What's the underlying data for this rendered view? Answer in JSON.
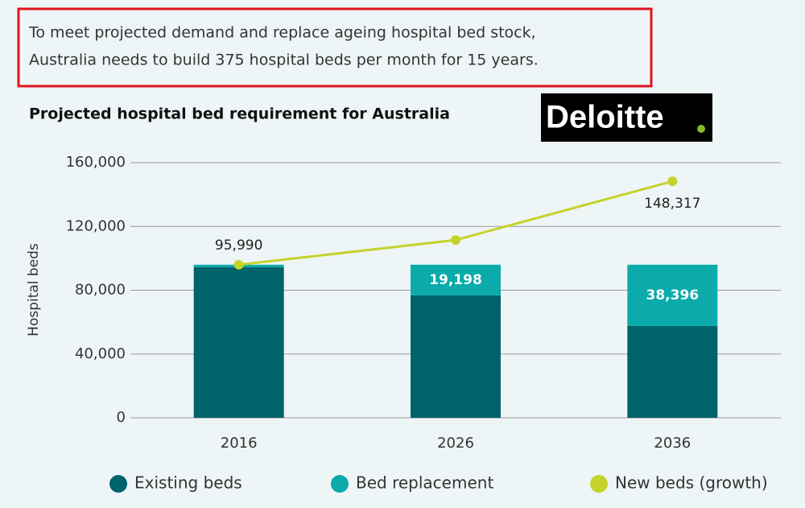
{
  "header": {
    "lines": [
      "To meet projected demand and replace ageing hospital bed stock,",
      "Australia needs to build 375 hospital beds per month for 15 years."
    ]
  },
  "logo": "Deloitte",
  "chart_data": {
    "type": "bar",
    "stacked": true,
    "title": "Projected hospital bed requirement for Australia",
    "y_label": "Hospital beds",
    "categories": [
      "2016",
      "2026",
      "2036"
    ],
    "series": [
      {
        "name": "Existing beds",
        "color": "#00636b",
        "values": [
          94500,
          76792,
          57594
        ]
      },
      {
        "name": "Bed replacement",
        "color": "#0aabaa",
        "values": [
          1490,
          19198,
          38396
        ],
        "value_labels": [
          null,
          "19,198",
          "38,396"
        ]
      },
      {
        "name": "New beds (growth)",
        "color": "#c5d22b",
        "type": "line",
        "values": [
          95990,
          111500,
          148317
        ],
        "value_labels": [
          "95,990",
          null,
          "148,317"
        ]
      }
    ],
    "ylim": [
      0,
      160000
    ],
    "yticks": [
      0,
      {
        "value": 40000,
        "label": "40,000"
      },
      {
        "value": 80000,
        "label": "80,000"
      },
      {
        "value": 120000,
        "label": "120,000"
      },
      {
        "value": 160000,
        "label": "160,000"
      }
    ],
    "grid": true
  }
}
